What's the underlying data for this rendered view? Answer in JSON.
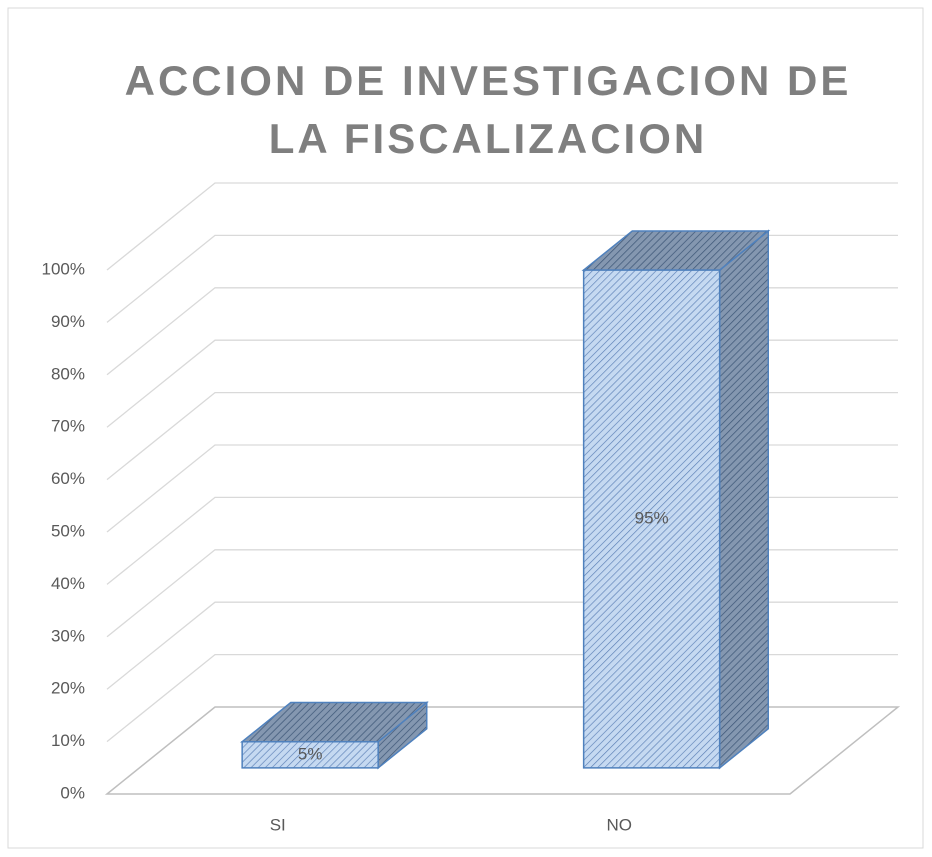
{
  "chart_data": {
    "type": "bar3d",
    "title": [
      "ACCION DE INVESTIGACION DE",
      "LA FISCALIZACION"
    ],
    "categories": [
      "SI",
      "NO"
    ],
    "values": [
      5,
      95
    ],
    "value_labels": [
      "5%",
      "95%"
    ],
    "color": "#c5d9f1",
    "ylim": [
      0,
      100
    ],
    "yticks": [
      {
        "value": 0,
        "label": "0%"
      },
      {
        "value": 10,
        "label": "10%"
      },
      {
        "value": 20,
        "label": "20%"
      },
      {
        "value": 30,
        "label": "30%"
      },
      {
        "value": 40,
        "label": "40%"
      },
      {
        "value": 50,
        "label": "50%"
      },
      {
        "value": 60,
        "label": "60%"
      },
      {
        "value": 70,
        "label": "70%"
      },
      {
        "value": 80,
        "label": "80%"
      },
      {
        "value": 90,
        "label": "90%"
      },
      {
        "value": 100,
        "label": "100%"
      }
    ],
    "grid": true
  }
}
